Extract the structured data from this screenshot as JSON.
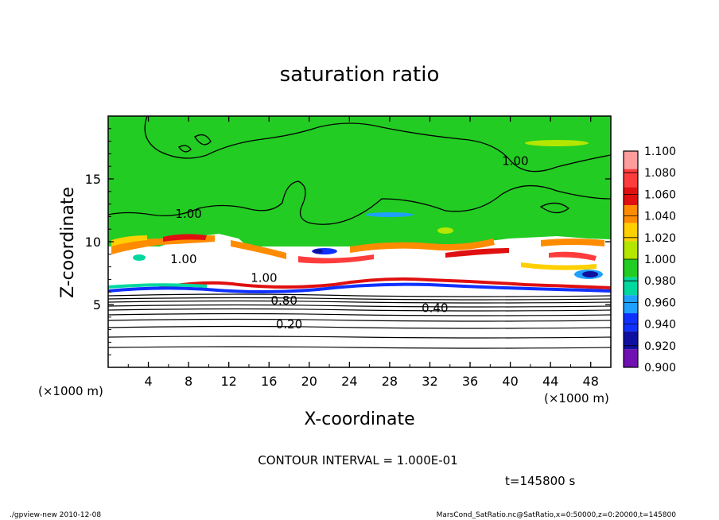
{
  "chart_data": {
    "type": "heatmap",
    "title": "saturation ratio",
    "xlabel": "X-coordinate",
    "ylabel": "Z-coordinate",
    "x_unit": "(×1000 m)",
    "y_unit": "(×1000 m)",
    "xlim": [
      0,
      50
    ],
    "ylim": [
      0,
      20
    ],
    "x_ticks": [
      4,
      8,
      12,
      16,
      20,
      24,
      28,
      32,
      36,
      40,
      44,
      48
    ],
    "y_ticks": [
      5,
      10,
      15
    ],
    "contour_interval": "CONTOUR INTERVAL = 1.000E-01",
    "time_label": "t=145800 s",
    "colorbar": {
      "levels": [
        "1.100",
        "1.080",
        "1.060",
        "1.040",
        "1.020",
        "1.000",
        "0.980",
        "0.960",
        "0.940",
        "0.920",
        "0.900"
      ],
      "colors": [
        "#ff9c9c",
        "#ff3c3c",
        "#e01010",
        "#ff8c00",
        "#ffd000",
        "#b4e600",
        "#22cc22",
        "#00d8a0",
        "#1ea0ff",
        "#1030ff",
        "#1010a0",
        "#7010b0"
      ]
    },
    "contour_labels": [
      {
        "text": "1.00",
        "x": 40.5,
        "z": 16.1
      },
      {
        "text": "1.00",
        "x": 8.0,
        "z": 11.9
      },
      {
        "text": "1.00",
        "x": 7.5,
        "z": 8.3
      },
      {
        "text": "1.00",
        "x": 15.5,
        "z": 6.8
      },
      {
        "text": "0.80",
        "x": 17.5,
        "z": 5.0
      },
      {
        "text": "0.40",
        "x": 32.5,
        "z": 4.4
      },
      {
        "text": "0.20",
        "x": 18.0,
        "z": 3.1
      }
    ],
    "footer_left": "./gpview-new   2010-12-08",
    "footer_right": "MarsCond_SatRatio.nc@SatRatio,x=0:50000,z=0:20000,t=145800"
  }
}
